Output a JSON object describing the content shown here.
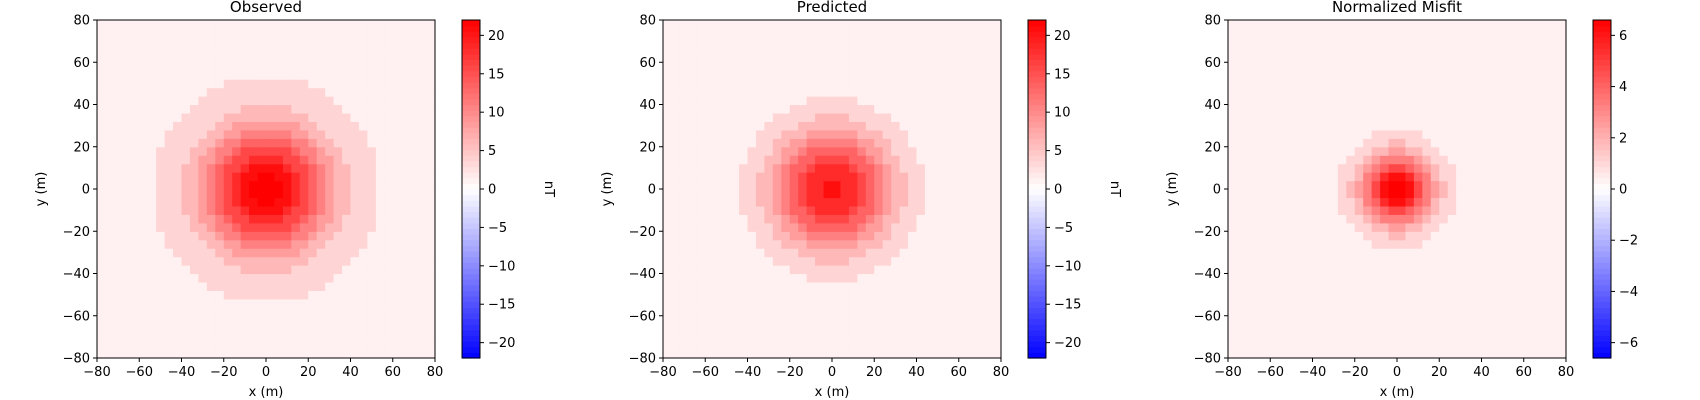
{
  "chart_data": [
    {
      "type": "heatmap",
      "subtype": "filled-contour",
      "title": "Observed",
      "xlabel": "x (m)",
      "ylabel": "y (m)",
      "xlim": [
        -80,
        80
      ],
      "ylim": [
        -80,
        80
      ],
      "xticks": [
        -80,
        -60,
        -40,
        -20,
        0,
        20,
        40,
        60,
        80
      ],
      "yticks": [
        -80,
        -60,
        -40,
        -20,
        0,
        20,
        40,
        60,
        80
      ],
      "field": {
        "center": [
          0,
          0
        ],
        "peak": 22,
        "width_m": 20,
        "background": 1.8
      },
      "colorbar": {
        "label": "nT",
        "min": -22,
        "max": 22,
        "ticks": [
          -20,
          -15,
          -10,
          -5,
          0,
          5,
          10,
          15,
          20
        ],
        "cmap": "bwr"
      }
    },
    {
      "type": "heatmap",
      "subtype": "filled-contour",
      "title": "Predicted",
      "xlabel": "x (m)",
      "ylabel": "y (m)",
      "xlim": [
        -80,
        80
      ],
      "ylim": [
        -80,
        80
      ],
      "xticks": [
        -80,
        -60,
        -40,
        -20,
        0,
        20,
        40,
        60,
        80
      ],
      "yticks": [
        -80,
        -60,
        -40,
        -20,
        0,
        20,
        40,
        60,
        80
      ],
      "field": {
        "center": [
          0,
          0
        ],
        "peak": 20,
        "width_m": 20,
        "background": 0.5
      },
      "colorbar": {
        "label": "nT",
        "min": -22,
        "max": 22,
        "ticks": [
          -20,
          -15,
          -10,
          -5,
          0,
          5,
          10,
          15,
          20
        ],
        "cmap": "bwr"
      }
    },
    {
      "type": "heatmap",
      "subtype": "filled-contour",
      "title": "Normalized Misfit",
      "xlabel": "x (m)",
      "ylabel": "y (m)",
      "xlim": [
        -80,
        80
      ],
      "ylim": [
        -80,
        80
      ],
      "xticks": [
        -80,
        -60,
        -40,
        -20,
        0,
        20,
        40,
        60,
        80
      ],
      "yticks": [
        -80,
        -60,
        -40,
        -20,
        0,
        20,
        40,
        60,
        80
      ],
      "field": {
        "center": [
          0,
          0
        ],
        "peak": 6.5,
        "width_m": 12,
        "background": 0.3
      },
      "colorbar": {
        "label": "",
        "min": -6.6,
        "max": 6.6,
        "ticks": [
          -6,
          -4,
          -2,
          0,
          2,
          4,
          6
        ],
        "cmap": "bwr"
      }
    }
  ]
}
